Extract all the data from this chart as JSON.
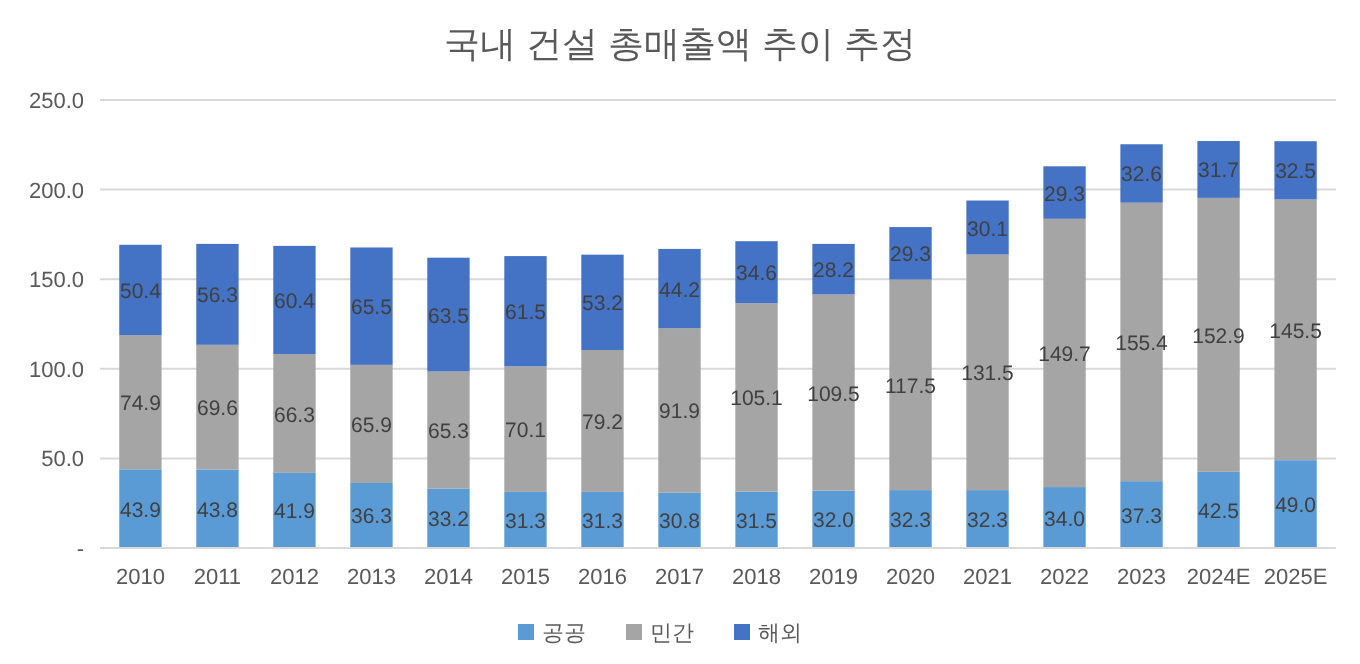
{
  "chart_data": {
    "type": "bar",
    "stacked": true,
    "title": "국내 건설 총매출액 추이 추정",
    "categories": [
      "2010",
      "2011",
      "2012",
      "2013",
      "2014",
      "2015",
      "2016",
      "2017",
      "2018",
      "2019",
      "2020",
      "2021",
      "2022",
      "2023",
      "2024E",
      "2025E"
    ],
    "series": [
      {
        "name": "공공",
        "color": "#5b9bd5",
        "values": [
          43.9,
          43.8,
          41.9,
          36.3,
          33.2,
          31.3,
          31.3,
          30.8,
          31.5,
          32.0,
          32.3,
          32.3,
          34.0,
          37.3,
          42.5,
          49.0
        ],
        "value_labels": [
          "43.9",
          "43.8",
          "41.9",
          "36.3",
          "33.2",
          "31.3",
          "31.3",
          "30.8",
          "31.5",
          "32.0",
          "32.3",
          "32.3",
          "34.0",
          "37.3",
          "42.5",
          "49.0"
        ]
      },
      {
        "name": "민간",
        "color": "#a5a5a5",
        "values": [
          74.9,
          69.6,
          66.3,
          65.9,
          65.3,
          70.1,
          79.2,
          91.9,
          105.1,
          109.5,
          117.5,
          131.5,
          149.7,
          155.4,
          152.9,
          145.5
        ],
        "value_labels": [
          "74.9",
          "69.6",
          "66.3",
          "65.9",
          "65.3",
          "70.1",
          "79.2",
          "91.9",
          "105.1",
          "109.5",
          "117.5",
          "131.5",
          "149.7",
          "155.4",
          "152.9",
          "145.5"
        ]
      },
      {
        "name": "해외",
        "color": "#4472c4",
        "values": [
          50.4,
          56.3,
          60.4,
          65.5,
          63.5,
          61.5,
          53.2,
          44.2,
          34.6,
          28.2,
          29.3,
          30.1,
          29.3,
          32.6,
          31.7,
          32.5
        ],
        "value_labels": [
          "50.4",
          "56.3",
          "60.4",
          "65.5",
          "63.5",
          "61.5",
          "53.2",
          "44.2",
          "34.6",
          "28.2",
          "29.3",
          "30.1",
          "29.3",
          "32.6",
          "31.7",
          "32.5"
        ]
      }
    ],
    "ylim": [
      0,
      250
    ],
    "yticks": [
      {
        "value": 0,
        "label": "-"
      },
      {
        "value": 50,
        "label": "50.0"
      },
      {
        "value": 100,
        "label": "100.0"
      },
      {
        "value": 150,
        "label": "150.0"
      },
      {
        "value": 200,
        "label": "200.0"
      },
      {
        "value": 250,
        "label": "250.0"
      }
    ],
    "grid": "y",
    "legend": "bottom"
  }
}
